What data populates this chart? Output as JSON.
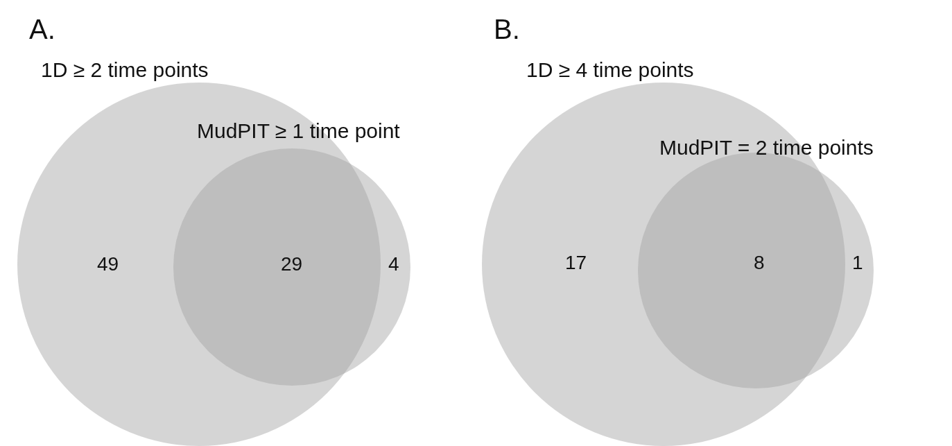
{
  "chart_data": [
    {
      "type": "other",
      "title": "A.",
      "categories": [
        null,
        null,
        null
      ],
      "values": [
        49,
        29,
        4
      ],
      "data_labels": true,
      "color": "#a2a2a2",
      "annotations": [
        "1D ≥ 2 time points",
        "MudPIT ≥ 1 time point"
      ]
    },
    {
      "type": "other",
      "title": "B.",
      "categories": [
        null,
        null,
        null
      ],
      "values": [
        17,
        8,
        1
      ],
      "data_labels": true,
      "color": "#a2a2a2",
      "annotations": [
        "1D ≥ 4 time points",
        "MudPIT = 2 time points"
      ]
    }
  ]
}
